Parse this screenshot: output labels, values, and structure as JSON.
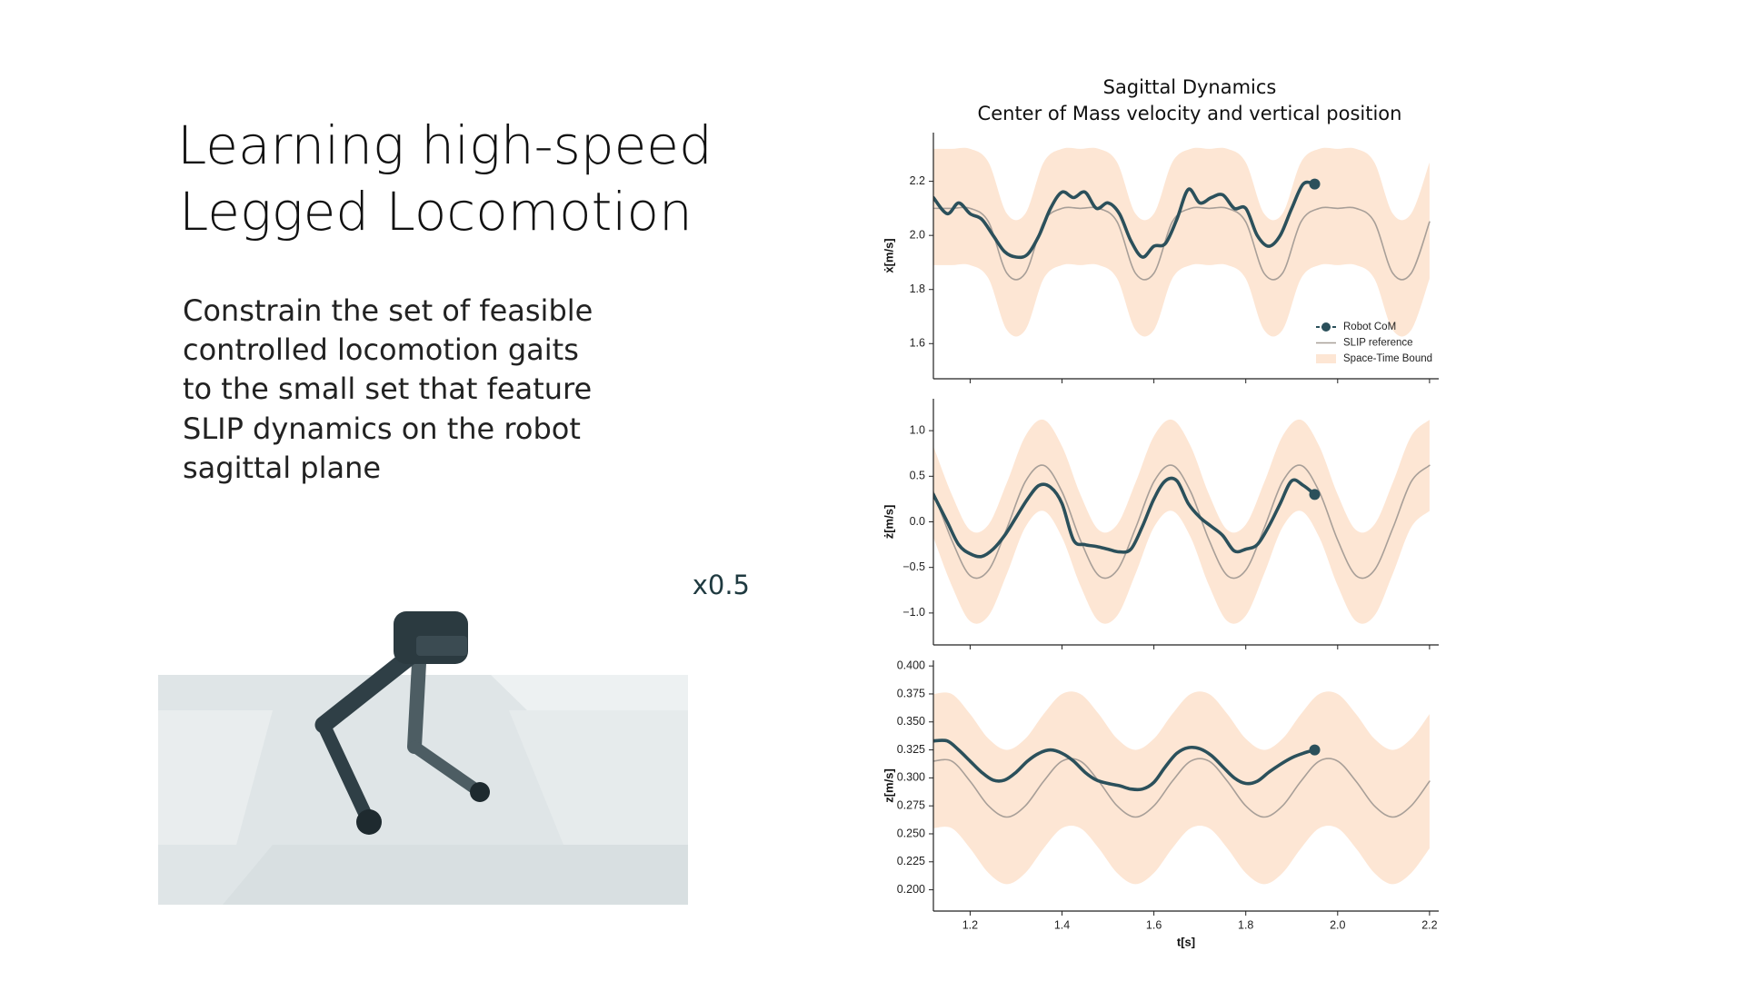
{
  "slide": {
    "title_lines": [
      "Learning high-speed",
      "Legged Locomotion"
    ],
    "body_lines": [
      "Constrain the set of feasible",
      "controlled locomotion gaits",
      "to the small set that feature",
      "SLIP  dynamics on the robot",
      "sagittal plane"
    ],
    "playback_speed": "x0.5"
  },
  "figure": {
    "title": "Sagittal Dynamics",
    "subtitle": "Center of Mass velocity and vertical position"
  },
  "chart_data": [
    {
      "type": "line",
      "ylabel": "ẋ[m/s]",
      "legend": "lower right",
      "xlim": [
        1.12,
        2.22
      ],
      "xticks": [
        1.2,
        1.4,
        1.6,
        1.8,
        2,
        2.2
      ],
      "show_xtick_labels": false,
      "ylim": [
        1.47,
        2.38
      ],
      "yticks": [
        1.6,
        1.8,
        {
          "value": 2,
          "label": "2.0"
        },
        2.2
      ],
      "series": [
        {
          "name": "Robot CoM",
          "color": "#2b505b",
          "end_marker": true,
          "x": [
            1.12,
            1.15,
            1.175,
            1.2,
            1.225,
            1.25,
            1.275,
            1.3,
            1.325,
            1.35,
            1.375,
            1.4,
            1.425,
            1.45,
            1.475,
            1.5,
            1.525,
            1.55,
            1.575,
            1.6,
            1.625,
            1.65,
            1.675,
            1.7,
            1.725,
            1.75,
            1.775,
            1.8,
            1.825,
            1.85,
            1.875,
            1.9,
            1.925,
            1.95
          ],
          "values": [
            2.14,
            2.08,
            2.12,
            2.08,
            2.06,
            2.0,
            1.94,
            1.92,
            1.93,
            2.0,
            2.1,
            2.16,
            2.14,
            2.16,
            2.1,
            2.12,
            2.08,
            1.98,
            1.92,
            1.96,
            1.97,
            2.06,
            2.17,
            2.12,
            2.14,
            2.15,
            2.1,
            2.1,
            2.0,
            1.96,
            2.0,
            2.1,
            2.19,
            2.19
          ]
        },
        {
          "name": "SLIP reference",
          "color": "#a89f98",
          "x": [
            1.12,
            1.16,
            1.2,
            1.24,
            1.28,
            1.32,
            1.36,
            1.4,
            1.44,
            1.48,
            1.52,
            1.56,
            1.6,
            1.64,
            1.68,
            1.72,
            1.76,
            1.8,
            1.84,
            1.88,
            1.92,
            1.96,
            2,
            2.04,
            2.08,
            2.12,
            2.16,
            2.2
          ],
          "values": [
            2.1,
            2.1,
            2.1,
            2.05,
            1.86,
            1.86,
            2.05,
            2.1,
            2.1,
            2.1,
            2.05,
            1.86,
            1.86,
            2.05,
            2.1,
            2.1,
            2.1,
            2.05,
            1.86,
            1.86,
            2.05,
            2.1,
            2.1,
            2.1,
            2.05,
            1.86,
            1.86,
            2.05
          ]
        },
        {
          "name": "Space-Time Bound",
          "color": "#fde6d4",
          "x": [
            1.12,
            1.16,
            1.2,
            1.24,
            1.28,
            1.32,
            1.36,
            1.4,
            1.44,
            1.48,
            1.52,
            1.56,
            1.6,
            1.64,
            1.68,
            1.72,
            1.76,
            1.8,
            1.84,
            1.88,
            1.92,
            1.96,
            2,
            2.04,
            2.08,
            2.12,
            2.16,
            2.2
          ],
          "upper": [
            2.32,
            2.32,
            2.32,
            2.27,
            2.08,
            2.08,
            2.27,
            2.32,
            2.32,
            2.32,
            2.27,
            2.08,
            2.08,
            2.27,
            2.32,
            2.32,
            2.32,
            2.27,
            2.08,
            2.08,
            2.27,
            2.32,
            2.32,
            2.32,
            2.27,
            2.08,
            2.08,
            2.27
          ],
          "lower": [
            1.89,
            1.89,
            1.89,
            1.84,
            1.65,
            1.65,
            1.84,
            1.89,
            1.89,
            1.89,
            1.84,
            1.65,
            1.65,
            1.84,
            1.89,
            1.89,
            1.89,
            1.84,
            1.65,
            1.65,
            1.84,
            1.89,
            1.89,
            1.89,
            1.84,
            1.65,
            1.65,
            1.84
          ]
        }
      ]
    },
    {
      "type": "line",
      "ylabel": "ż[m/s]",
      "xlim": [
        1.12,
        2.22
      ],
      "xticks": [
        1.2,
        1.4,
        1.6,
        1.8,
        2,
        2.2
      ],
      "show_xtick_labels": false,
      "ylim": [
        -1.35,
        1.35
      ],
      "yticks": [
        {
          "value": -1,
          "label": "−1.0"
        },
        {
          "value": -0.5,
          "label": "−0.5"
        },
        {
          "value": 0,
          "label": "0.0"
        },
        0.5,
        {
          "value": 1,
          "label": "1.0"
        }
      ],
      "series": [
        {
          "color": "#2b505b",
          "end_marker": true,
          "x": [
            1.12,
            1.15,
            1.175,
            1.2,
            1.225,
            1.25,
            1.275,
            1.3,
            1.325,
            1.35,
            1.375,
            1.4,
            1.425,
            1.45,
            1.475,
            1.5,
            1.525,
            1.55,
            1.575,
            1.6,
            1.625,
            1.65,
            1.675,
            1.7,
            1.725,
            1.75,
            1.775,
            1.8,
            1.825,
            1.85,
            1.875,
            1.9,
            1.925,
            1.95
          ],
          "values": [
            0.3,
            0.0,
            -0.25,
            -0.35,
            -0.38,
            -0.3,
            -0.15,
            0.05,
            0.25,
            0.4,
            0.38,
            0.2,
            -0.2,
            -0.25,
            -0.27,
            -0.3,
            -0.33,
            -0.3,
            -0.05,
            0.25,
            0.45,
            0.45,
            0.2,
            0.05,
            -0.05,
            -0.15,
            -0.32,
            -0.3,
            -0.25,
            -0.05,
            0.2,
            0.45,
            0.4,
            0.3
          ]
        },
        {
          "color": "#a89f98",
          "x": [
            1.12,
            1.16,
            1.2,
            1.24,
            1.28,
            1.32,
            1.36,
            1.4,
            1.44,
            1.48,
            1.52,
            1.56,
            1.6,
            1.64,
            1.68,
            1.72,
            1.76,
            1.8,
            1.84,
            1.88,
            1.92,
            1.96,
            2,
            2.04,
            2.08,
            2.12,
            2.16,
            2.2
          ],
          "values": [
            0.33,
            -0.2,
            -0.59,
            -0.53,
            -0.07,
            0.44,
            0.62,
            0.33,
            -0.2,
            -0.59,
            -0.53,
            -0.07,
            0.44,
            0.62,
            0.33,
            -0.2,
            -0.59,
            -0.53,
            -0.07,
            0.44,
            0.62,
            0.33,
            -0.2,
            -0.59,
            -0.53,
            -0.07,
            0.44,
            0.62
          ]
        },
        {
          "color": "#fde6d4",
          "x": [
            1.12,
            1.16,
            1.2,
            1.24,
            1.28,
            1.32,
            1.36,
            1.4,
            1.44,
            1.48,
            1.52,
            1.56,
            1.6,
            1.64,
            1.68,
            1.72,
            1.76,
            1.8,
            1.84,
            1.88,
            1.92,
            1.96,
            2,
            2.04,
            2.08,
            2.12,
            2.16,
            2.2
          ],
          "upper": [
            0.83,
            0.3,
            -0.09,
            -0.03,
            0.43,
            0.94,
            1.12,
            0.83,
            0.3,
            -0.09,
            -0.03,
            0.43,
            0.94,
            1.12,
            0.83,
            0.3,
            -0.09,
            -0.03,
            0.43,
            0.94,
            1.12,
            0.83,
            0.3,
            -0.09,
            -0.03,
            0.43,
            0.94,
            1.12
          ],
          "lower": [
            -0.17,
            -0.7,
            -1.09,
            -1.03,
            -0.57,
            -0.06,
            0.12,
            -0.17,
            -0.7,
            -1.09,
            -1.03,
            -0.57,
            -0.06,
            0.12,
            -0.17,
            -0.7,
            -1.09,
            -1.03,
            -0.57,
            -0.06,
            0.12,
            -0.17,
            -0.7,
            -1.09,
            -1.03,
            -0.57,
            -0.06,
            0.12
          ]
        }
      ]
    },
    {
      "type": "line",
      "ylabel": "z[m/s]",
      "xlabel": "t[s]",
      "xlim": [
        1.12,
        2.22
      ],
      "xticks": [
        1.2,
        1.4,
        1.6,
        1.8,
        {
          "value": 2,
          "label": "2.0"
        },
        2.2
      ],
      "show_xtick_labels": true,
      "ylim": [
        0.181,
        0.405
      ],
      "yticks": [
        {
          "value": 0.2,
          "label": "0.200"
        },
        0.225,
        {
          "value": 0.25,
          "label": "0.250"
        },
        0.275,
        {
          "value": 0.3,
          "label": "0.300"
        },
        0.325,
        {
          "value": 0.35,
          "label": "0.350"
        },
        0.375,
        {
          "value": 0.4,
          "label": "0.400"
        }
      ],
      "series": [
        {
          "color": "#2b505b",
          "end_marker": true,
          "x": [
            1.12,
            1.15,
            1.175,
            1.2,
            1.225,
            1.25,
            1.275,
            1.3,
            1.325,
            1.35,
            1.375,
            1.4,
            1.425,
            1.45,
            1.475,
            1.5,
            1.525,
            1.55,
            1.575,
            1.6,
            1.625,
            1.65,
            1.675,
            1.7,
            1.725,
            1.75,
            1.775,
            1.8,
            1.825,
            1.85,
            1.875,
            1.9,
            1.925,
            1.95
          ],
          "values": [
            0.333,
            0.333,
            0.325,
            0.315,
            0.305,
            0.298,
            0.298,
            0.305,
            0.315,
            0.322,
            0.325,
            0.322,
            0.315,
            0.305,
            0.298,
            0.295,
            0.293,
            0.29,
            0.29,
            0.296,
            0.31,
            0.322,
            0.327,
            0.326,
            0.32,
            0.31,
            0.3,
            0.295,
            0.297,
            0.305,
            0.312,
            0.318,
            0.322,
            0.325
          ]
        },
        {
          "color": "#a89f98",
          "x": [
            1.12,
            1.16,
            1.2,
            1.24,
            1.28,
            1.32,
            1.36,
            1.4,
            1.44,
            1.48,
            1.52,
            1.56,
            1.6,
            1.64,
            1.68,
            1.72,
            1.76,
            1.8,
            1.84,
            1.88,
            1.92,
            1.96,
            2,
            2.04,
            2.08,
            2.12,
            2.16,
            2.2
          ],
          "values": [
            0.315,
            0.315,
            0.297,
            0.275,
            0.265,
            0.275,
            0.297,
            0.315,
            0.315,
            0.297,
            0.275,
            0.265,
            0.275,
            0.297,
            0.315,
            0.315,
            0.297,
            0.275,
            0.265,
            0.275,
            0.297,
            0.315,
            0.315,
            0.297,
            0.275,
            0.265,
            0.275,
            0.297
          ]
        },
        {
          "color": "#fde6d4",
          "x": [
            1.12,
            1.16,
            1.2,
            1.24,
            1.28,
            1.32,
            1.36,
            1.4,
            1.44,
            1.48,
            1.52,
            1.56,
            1.6,
            1.64,
            1.68,
            1.72,
            1.76,
            1.8,
            1.84,
            1.88,
            1.92,
            1.96,
            2,
            2.04,
            2.08,
            2.12,
            2.16,
            2.2
          ],
          "upper": [
            0.375,
            0.375,
            0.357,
            0.335,
            0.325,
            0.335,
            0.357,
            0.375,
            0.375,
            0.357,
            0.335,
            0.325,
            0.335,
            0.357,
            0.375,
            0.375,
            0.357,
            0.335,
            0.325,
            0.335,
            0.357,
            0.375,
            0.375,
            0.357,
            0.335,
            0.325,
            0.335,
            0.357
          ],
          "lower": [
            0.255,
            0.255,
            0.237,
            0.215,
            0.205,
            0.215,
            0.237,
            0.255,
            0.255,
            0.237,
            0.215,
            0.205,
            0.215,
            0.237,
            0.255,
            0.255,
            0.237,
            0.215,
            0.205,
            0.215,
            0.237,
            0.255,
            0.255,
            0.237,
            0.215,
            0.205,
            0.215,
            0.237
          ]
        }
      ]
    }
  ]
}
